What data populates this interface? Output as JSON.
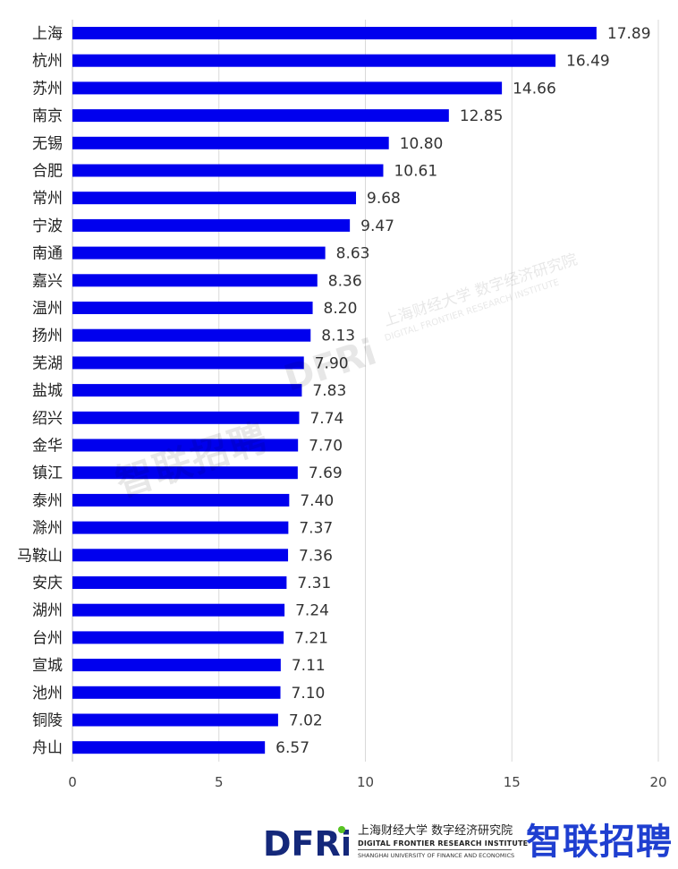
{
  "chart_data": {
    "type": "bar",
    "orientation": "horizontal",
    "categories": [
      "上海",
      "杭州",
      "苏州",
      "南京",
      "无锡",
      "合肥",
      "常州",
      "宁波",
      "南通",
      "嘉兴",
      "温州",
      "扬州",
      "芜湖",
      "盐城",
      "绍兴",
      "金华",
      "镇江",
      "泰州",
      "滁州",
      "马鞍山",
      "安庆",
      "湖州",
      "台州",
      "宣城",
      "池州",
      "铜陵",
      "舟山"
    ],
    "values": [
      17.89,
      16.49,
      14.66,
      12.85,
      10.8,
      10.61,
      9.68,
      9.47,
      8.63,
      8.36,
      8.2,
      8.13,
      7.9,
      7.83,
      7.74,
      7.7,
      7.69,
      7.4,
      7.37,
      7.36,
      7.31,
      7.24,
      7.21,
      7.11,
      7.1,
      7.02,
      6.57
    ],
    "value_labels": [
      "17.89",
      "16.49",
      "14.66",
      "12.85",
      "10.80",
      "10.61",
      "9.68",
      "9.47",
      "8.63",
      "8.36",
      "8.20",
      "8.13",
      "7.90",
      "7.83",
      "7.74",
      "7.70",
      "7.69",
      "7.40",
      "7.37",
      "7.36",
      "7.31",
      "7.24",
      "7.21",
      "7.11",
      "7.10",
      "7.02",
      "6.57"
    ],
    "xlim": [
      0,
      20
    ],
    "xticks": [
      0,
      5,
      10,
      15,
      20
    ],
    "xtick_labels": [
      "0",
      "5",
      "10",
      "15",
      "20"
    ],
    "grid": "vertical",
    "bar_color": "#0000ee"
  },
  "watermark": {
    "brand": "智联招聘",
    "dfri": "DFRi",
    "institute_cn": "上海财经大学 数字经济研究院",
    "institute_en": "DIGITAL FRONTIER RESEARCH INSTITUTE"
  },
  "footer": {
    "dfri_logo_text": "DFRi",
    "institute_cn": "上海财经大学 数字经济研究院",
    "institute_en": "DIGITAL FRONTIER RESEARCH INSTITUTE",
    "university_en": "SHANGHAI UNIVERSITY OF FINANCE AND ECONOMICS",
    "brand": "智联招聘",
    "brand_color": "#1f3fd0"
  }
}
